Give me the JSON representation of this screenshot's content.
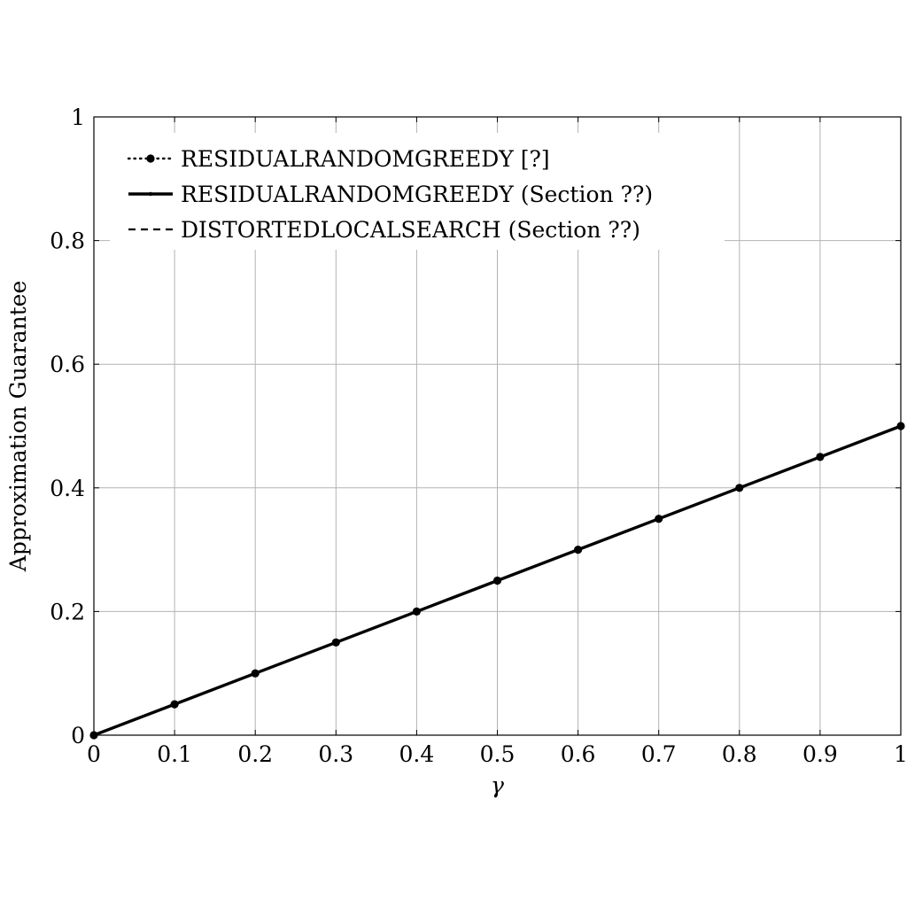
{
  "chart_data": {
    "type": "line",
    "xlabel": "γ",
    "ylabel": "Approximation Guarantee",
    "xlim": [
      0,
      1
    ],
    "ylim": [
      0,
      1
    ],
    "grid": true,
    "legend_position": "top-left",
    "x_ticks": [
      "0",
      "0.1",
      "0.2",
      "0.3",
      "0.4",
      "0.5",
      "0.6",
      "0.7",
      "0.8",
      "0.9",
      "1"
    ],
    "y_ticks": [
      "0",
      "0.2",
      "0.4",
      "0.6",
      "0.8",
      "1"
    ],
    "x": [
      0,
      0.1,
      0.2,
      0.3,
      0.4,
      0.5,
      0.6,
      0.7,
      0.8,
      0.9,
      1.0
    ],
    "series": [
      {
        "name": "RESIDUALRANDOMGREEDY [?]",
        "style": "dotted-with-markers",
        "values": [
          0,
          0.05,
          0.1,
          0.15,
          0.2,
          0.25,
          0.3,
          0.35,
          0.4,
          0.45,
          0.5
        ]
      },
      {
        "name": "RESIDUALRANDOMGREEDY (Section ??)",
        "style": "solid-thick",
        "values": [
          0,
          0.05,
          0.1,
          0.15,
          0.2,
          0.25,
          0.3,
          0.35,
          0.4,
          0.45,
          0.5
        ]
      },
      {
        "name": "DISTORTEDLOCALSEARCH (Section ??)",
        "style": "dashed",
        "values": [
          0,
          0.05,
          0.1,
          0.15,
          0.2,
          0.25,
          0.3,
          0.35,
          0.4,
          0.45,
          0.5
        ]
      }
    ],
    "colors": {
      "line": "#000000",
      "grid": "#b3b3b3"
    }
  }
}
